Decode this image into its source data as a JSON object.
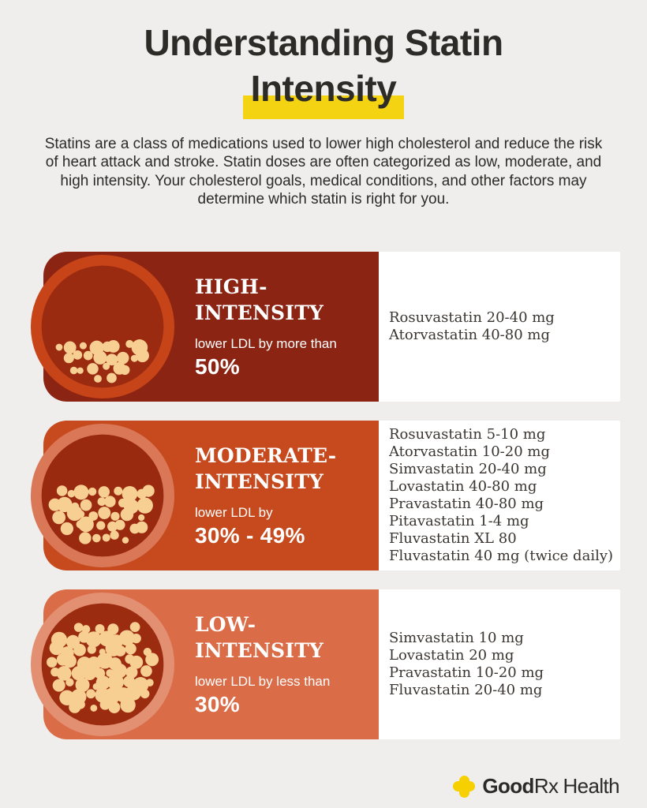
{
  "background_color": "#efeeec",
  "header": {
    "title_line1": "Understanding Statin",
    "title_line2": "Intensity",
    "highlight_color": "#f4d312",
    "intro": "Statins are a class of medications used to lower high cholesterol and reduce the risk of heart attack and stroke. Statin doses are often categorized as low, moderate, and high intensity. Your cholesterol goals, medical conditions, and other factors may determine which statin is right for you."
  },
  "cards": [
    {
      "id": "high-intensity",
      "title": "HIGH-\nINTENSITY",
      "ldl_text": "lower LDL by more than",
      "ldl_value": "50%",
      "pill_fill_percent": 42,
      "colors": {
        "card": "#8c2413",
        "halo": "#c64418",
        "inner": "#9a2b10",
        "pill": "#f8cf92"
      },
      "medications": [
        "Rosuvastatin 20-40 mg",
        "Atorvastatin 40-80 mg"
      ]
    },
    {
      "id": "moderate-intensity",
      "title": "MODERATE-\nINTENSITY",
      "ldl_text": "lower LDL by",
      "ldl_value": "30% - 49%",
      "pill_fill_percent": 62,
      "colors": {
        "card": "#c74a1e",
        "halo": "#d97757",
        "inner": "#992a0f",
        "pill": "#f8cf92"
      },
      "medications": [
        "Rosuvastatin 5-10 mg",
        "Atorvastatin 10-20 mg",
        "Simvastatin 20-40 mg",
        "Lovastatin 40-80 mg",
        "Pravastatin 40-80 mg",
        "Pitavastatin 1-4 mg",
        "Fluvastatin XL 80",
        "Fluvastatin 40 mg (twice daily)"
      ]
    },
    {
      "id": "low-intensity",
      "title": "LOW-\nINTENSITY",
      "ldl_text": "lower LDL by less than",
      "ldl_value": "30%",
      "pill_fill_percent": 88,
      "colors": {
        "card": "#db6c48",
        "halo": "#e28f72",
        "inner": "#9c2c10",
        "pill": "#f8cf92"
      },
      "medications": [
        "Simvastatin 10 mg",
        "Lovastatin 20 mg",
        "Pravastatin 10-20 mg",
        "Fluvastatin 20-40 mg"
      ]
    }
  ],
  "footer": {
    "logo_good": "Good",
    "logo_rx": "Rx",
    "logo_health": "Health",
    "logo_cross_color": "#f6d000"
  }
}
